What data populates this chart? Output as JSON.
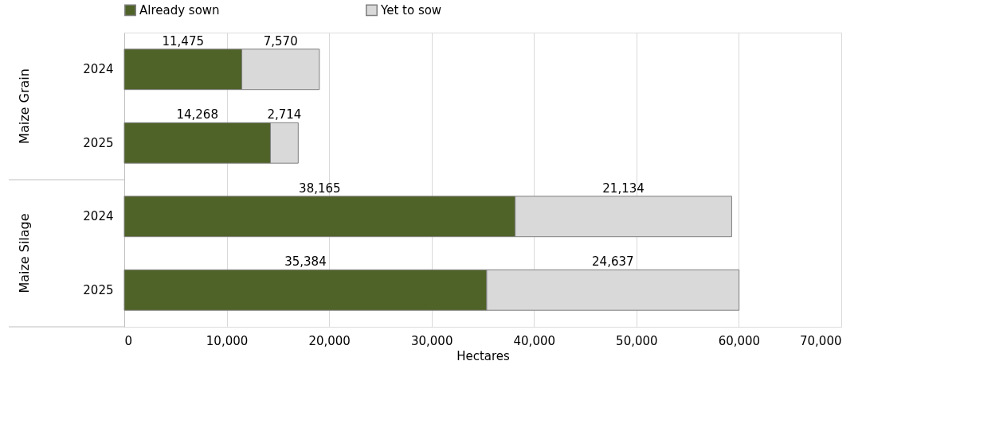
{
  "chart_data": {
    "type": "bar",
    "orientation": "horizontal",
    "stacked": true,
    "xlabel": "Hectares",
    "categories": [
      "2024",
      "2025",
      "2024",
      "2025"
    ],
    "annotations": [
      "Maize Grain",
      "Maize Silage"
    ],
    "series": [
      {
        "name": "Already sown",
        "color": "#4f6228",
        "values": [
          11475,
          14268,
          38165,
          35384
        ],
        "value_labels": [
          "11,475",
          "14,268",
          "38,165",
          "35,384"
        ]
      },
      {
        "name": "Yet to sow",
        "color": "#d9d9d9",
        "values": [
          7570,
          2714,
          21134,
          24637
        ],
        "value_labels": [
          "7,570",
          "2,714",
          "21,134",
          "24,637"
        ]
      }
    ],
    "xlim": [
      0,
      70000
    ],
    "xticks": [
      0,
      {
        "value": 10000,
        "label": "10,000"
      },
      {
        "value": 20000,
        "label": "20,000"
      },
      {
        "value": 30000,
        "label": "30,000"
      },
      {
        "value": 40000,
        "label": "40,000"
      },
      {
        "value": 50000,
        "label": "50,000"
      },
      {
        "value": 60000,
        "label": "60,000"
      },
      {
        "value": 70000,
        "label": "70,000"
      }
    ],
    "grid": "x",
    "legend": "top"
  }
}
